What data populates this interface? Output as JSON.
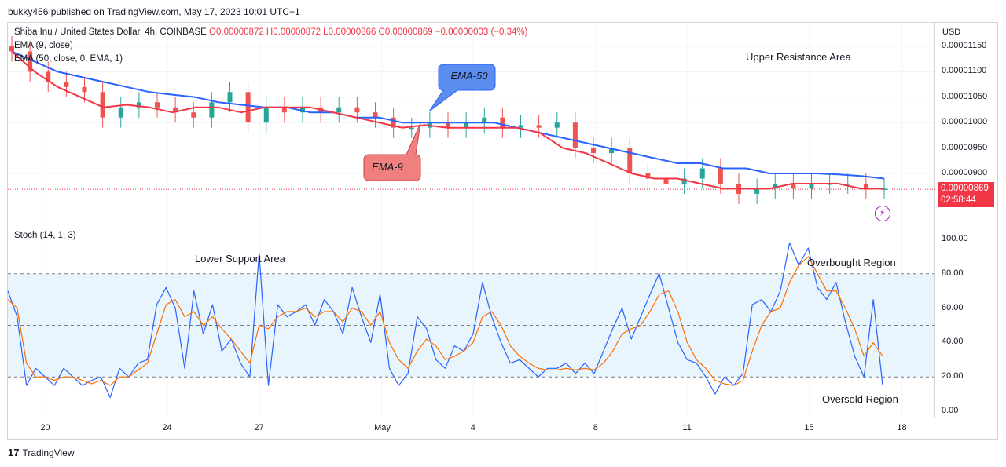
{
  "header": {
    "text": "bukky456 published on TradingView.com, May 17, 2023 10:01 UTC+1"
  },
  "symbol": {
    "name": "Shiba Inu / United States Dollar, 4h, COINBASE",
    "ohlc": "O0.00000872 H0.00000872 L0.00000866 C0.00000869 −0.00000003 (−0.34%)"
  },
  "indicators": {
    "ema9": "EMA (9, close)",
    "ema50": "EMA (50, close, 0, EMA, 1)",
    "stoch": "Stoch (14, 1, 3)"
  },
  "currency": "USD",
  "current_price": {
    "price": "0.00000869",
    "countdown": "02:58:44"
  },
  "annotations": {
    "upper_resistance": "Upper Resistance Area",
    "lower_support": "Lower Support Area",
    "overbought": "Overbought Region",
    "oversold": "Oversold Region",
    "ema50_callout": "EMA-50",
    "ema9_callout": "EMA-9"
  },
  "footer": {
    "brand": "TradingView"
  },
  "colors": {
    "up": "#26a69a",
    "down": "#ef5350",
    "ema9": "#f23645",
    "ema50": "#2962ff",
    "stoch_k": "#2962ff",
    "stoch_d": "#ff6d00",
    "band": "#e3f2fd"
  },
  "chart_data": [
    {
      "type": "candlestick",
      "title": "Shiba Inu / United States Dollar, 4h, COINBASE",
      "price_axis": {
        "ticks": [
          "0.00001150",
          "0.00001100",
          "0.00001050",
          "0.00001000",
          "0.00000950",
          "0.00000900"
        ],
        "ylim": [
          8.3e-06,
          1.16e-05
        ]
      },
      "x_axis": {
        "ticks": [
          "20",
          "24",
          "27",
          "May",
          "4",
          "8",
          "11",
          "15",
          "18"
        ]
      },
      "ema9": [
        1.14e-05,
        1.1e-05,
        1.07e-05,
        1.05e-05,
        1.03e-05,
        1.035e-05,
        1.03e-05,
        1.02e-05,
        1.03e-05,
        1.03e-05,
        1.02e-05,
        1.03e-05,
        1.03e-05,
        1.03e-05,
        1.02e-05,
        1.01e-05,
        1e-05,
        9.9e-06,
        9.95e-06,
        9.9e-06,
        9.9e-06,
        9.9e-06,
        9.9e-06,
        9.8e-06,
        9.5e-06,
        9.4e-06,
        9.2e-06,
        9e-06,
        8.9e-06,
        8.9e-06,
        8.8e-06,
        8.7e-06,
        8.7e-06,
        8.7e-06,
        8.8e-06,
        8.8e-06,
        8.8e-06,
        8.7e-06,
        8.7e-06
      ],
      "ema50": [
        1.14e-05,
        1.12e-05,
        1.1e-05,
        1.09e-05,
        1.08e-05,
        1.07e-05,
        1.06e-05,
        1.055e-05,
        1.05e-05,
        1.04e-05,
        1.035e-05,
        1.03e-05,
        1.03e-05,
        1.02e-05,
        1.02e-05,
        1.01e-05,
        1.01e-05,
        1e-05,
        1e-05,
        1e-05,
        1e-05,
        1e-05,
        9.9e-06,
        9.8e-06,
        9.7e-06,
        9.6e-06,
        9.5e-06,
        9.4e-06,
        9.3e-06,
        9.2e-06,
        9.2e-06,
        9.1e-06,
        9.1e-06,
        9e-06,
        9e-06,
        9e-06,
        8.98e-06,
        8.95e-06,
        8.9e-06
      ],
      "candles_close": [
        1.14e-05,
        1.1e-05,
        1.08e-05,
        1.07e-05,
        1.06e-05,
        1.01e-05,
        1.03e-05,
        1.04e-05,
        1.03e-05,
        1.02e-05,
        1.01e-05,
        1.04e-05,
        1.06e-05,
        1e-05,
        1.03e-05,
        1.02e-05,
        1.03e-05,
        1.02e-05,
        1.03e-05,
        1.02e-05,
        1.01e-05,
        9.9e-06,
        9.9e-06,
        1e-05,
        9.9e-06,
        1e-05,
        1.01e-05,
        9.9e-06,
        9.95e-06,
        9.9e-06,
        1e-05,
        9.5e-06,
        9.4e-06,
        9.5e-06,
        9e-06,
        8.9e-06,
        8.8e-06,
        8.9e-06,
        9.1e-06,
        8.8e-06,
        8.6e-06,
        8.7e-06,
        8.8e-06,
        8.7e-06,
        8.8e-06,
        8.8e-06,
        8.8e-06,
        8.7e-06,
        8.7e-06
      ]
    },
    {
      "type": "line",
      "title": "Stoch (14, 1, 3)",
      "ylim": [
        0,
        100
      ],
      "y_ticks": [
        "100.00",
        "80.00",
        "60.00",
        "40.00",
        "20.00",
        "0.00"
      ],
      "band": [
        20,
        80
      ],
      "series": [
        {
          "values": [
            70,
            55,
            15,
            25,
            20,
            15,
            25,
            20,
            15,
            18,
            20,
            8,
            25,
            20,
            28,
            30,
            62,
            72,
            60,
            25,
            70,
            45,
            62,
            35,
            42,
            28,
            20,
            92,
            15,
            62,
            55,
            58,
            62,
            50,
            65,
            58,
            45,
            72,
            55,
            40,
            68,
            25,
            15,
            22,
            55,
            48,
            30,
            25,
            38,
            35,
            45,
            75,
            55,
            40,
            28,
            30,
            25,
            20,
            25,
            25,
            28,
            22,
            28,
            22,
            35,
            48,
            60,
            42,
            55,
            68,
            80,
            60,
            40,
            30,
            28,
            20,
            10,
            20,
            15,
            22,
            62,
            65,
            58,
            70,
            98,
            85,
            95,
            72,
            65,
            75,
            52,
            32,
            20,
            65,
            15
          ]
        },
        {
          "values": [
            65,
            60,
            28,
            20,
            20,
            18,
            20,
            20,
            18,
            16,
            18,
            15,
            20,
            20,
            24,
            28,
            45,
            62,
            65,
            55,
            58,
            50,
            55,
            48,
            42,
            35,
            28,
            50,
            48,
            55,
            58,
            58,
            60,
            55,
            58,
            58,
            52,
            60,
            58,
            50,
            58,
            40,
            30,
            25,
            35,
            42,
            38,
            30,
            32,
            35,
            40,
            55,
            58,
            50,
            38,
            32,
            28,
            25,
            24,
            24,
            25,
            24,
            25,
            24,
            28,
            35,
            45,
            48,
            50,
            58,
            68,
            70,
            58,
            40,
            30,
            25,
            18,
            16,
            15,
            18,
            35,
            50,
            58,
            60,
            75,
            85,
            90,
            80,
            70,
            70,
            60,
            48,
            32,
            40,
            32
          ]
        }
      ]
    }
  ]
}
